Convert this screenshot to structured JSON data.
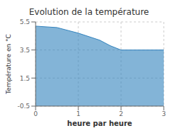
{
  "chart_data": {
    "type": "area",
    "title": "Evolution de la température",
    "xlabel": "heure par heure",
    "ylabel": "Température en °C",
    "x": [
      0,
      0.25,
      0.5,
      0.75,
      1.0,
      1.25,
      1.5,
      1.75,
      2.0,
      2.5,
      3.0
    ],
    "values": [
      5.2,
      5.15,
      5.1,
      4.9,
      4.7,
      4.45,
      4.2,
      3.8,
      3.5,
      3.5,
      3.5
    ],
    "xlim": [
      0,
      3
    ],
    "ylim": [
      -0.5,
      5.5
    ],
    "xticks": [
      0,
      1,
      2,
      3
    ],
    "yticks": [
      -0.5,
      1.5,
      3.5,
      5.5
    ],
    "grid": true
  }
}
